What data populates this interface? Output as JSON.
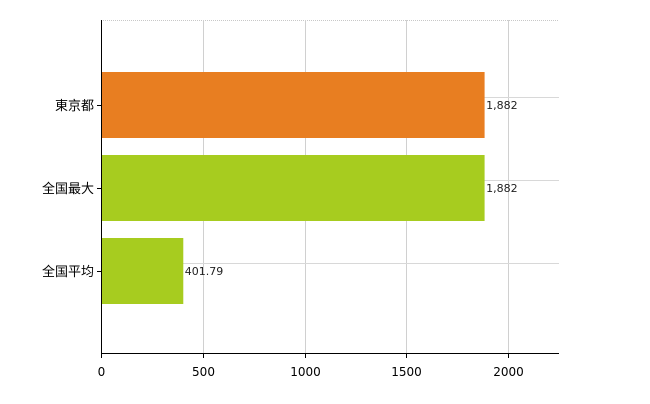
{
  "chart_data": {
    "type": "bar",
    "orientation": "horizontal",
    "categories": [
      "東京都",
      "全国最大",
      "全国平均"
    ],
    "values": [
      1882,
      1882,
      401.79
    ],
    "value_labels": [
      "1,882",
      "1,882",
      "401.79"
    ],
    "bar_colors": [
      "#e87e21",
      "#a7cc1f",
      "#a7cc1f"
    ],
    "xlim": [
      0,
      2250
    ],
    "xticks": [
      0,
      500,
      1000,
      1500,
      2000
    ],
    "xtick_labels": [
      "0",
      "500",
      "1000",
      "1500",
      "2000"
    ],
    "grid": true,
    "title": "",
    "xlabel": "",
    "ylabel": ""
  }
}
